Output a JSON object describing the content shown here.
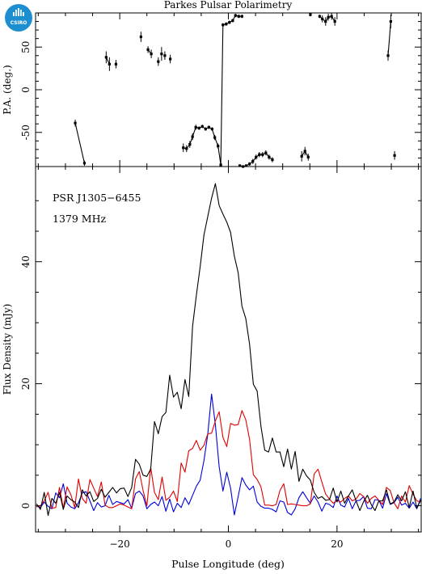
{
  "logo": {
    "text": "CSIRO",
    "color": "#1d8fd1"
  },
  "title": "Parkes Pulsar Polarimetry",
  "chart_data": [
    {
      "type": "scatter",
      "panel": "position-angle",
      "ylabel": "P.A. (deg.)",
      "xlim": [
        -35.5,
        35.5
      ],
      "ylim": [
        -90,
        90
      ],
      "yticks": [
        -50,
        0,
        50
      ],
      "points": [
        [
          -28.2,
          -39,
          4
        ],
        [
          -26.5,
          -86,
          3
        ],
        [
          -22.5,
          38,
          7
        ],
        [
          -21.9,
          30,
          8
        ],
        [
          -20.7,
          30,
          5
        ],
        [
          -16.1,
          62,
          6
        ],
        [
          -14.8,
          47,
          4
        ],
        [
          -14.2,
          42,
          5
        ],
        [
          -12.9,
          33,
          5
        ],
        [
          -12.3,
          42,
          8
        ],
        [
          -11.7,
          40,
          5
        ],
        [
          -10.7,
          36,
          5
        ],
        [
          -8.3,
          -68,
          5
        ],
        [
          -7.7,
          -69,
          4
        ],
        [
          -7.1,
          -64,
          4
        ],
        [
          -6.6,
          -55,
          4
        ],
        [
          -6.0,
          -44,
          3
        ],
        [
          -5.4,
          -45,
          2
        ],
        [
          -4.8,
          -43,
          2
        ],
        [
          -4.2,
          -46,
          2
        ],
        [
          -3.6,
          -44,
          2
        ],
        [
          -3.0,
          -46,
          2
        ],
        [
          -2.5,
          -56,
          3
        ],
        [
          -1.9,
          -66,
          3
        ],
        [
          -1.4,
          -88,
          2
        ],
        [
          -1.0,
          76,
          2
        ],
        [
          -0.4,
          77,
          2
        ],
        [
          0.2,
          79,
          2
        ],
        [
          0.8,
          81,
          2
        ],
        [
          1.3,
          87,
          2
        ],
        [
          1.9,
          86,
          2
        ],
        [
          2.5,
          86,
          2
        ],
        [
          2.1,
          -89,
          1
        ],
        [
          2.7,
          -90,
          1
        ],
        [
          3.3,
          -89,
          1
        ],
        [
          3.9,
          -87,
          2
        ],
        [
          4.5,
          -84,
          3
        ],
        [
          5.1,
          -79,
          3
        ],
        [
          5.7,
          -76,
          3
        ],
        [
          6.3,
          -76,
          3
        ],
        [
          6.9,
          -74,
          3
        ],
        [
          7.5,
          -79,
          3
        ],
        [
          8.1,
          -82,
          3
        ],
        [
          13.5,
          -78,
          6
        ],
        [
          14.1,
          -72,
          5
        ],
        [
          14.7,
          -79,
          4
        ],
        [
          15.1,
          88,
          2
        ],
        [
          16.8,
          86,
          2
        ],
        [
          17.3,
          83,
          4
        ],
        [
          17.9,
          80,
          5
        ],
        [
          18.4,
          85,
          4
        ],
        [
          19.0,
          86,
          4
        ],
        [
          19.6,
          80,
          5
        ],
        [
          29.4,
          40,
          6
        ],
        [
          29.9,
          80,
          8
        ],
        [
          30.6,
          -77,
          5
        ]
      ],
      "segments": [
        [
          0,
          1
        ],
        [
          2,
          3
        ],
        [
          6,
          7
        ],
        [
          12,
          13
        ],
        [
          13,
          14
        ],
        [
          14,
          15
        ],
        [
          15,
          16
        ],
        [
          16,
          17
        ],
        [
          17,
          18
        ],
        [
          18,
          19
        ],
        [
          19,
          20
        ],
        [
          20,
          21
        ],
        [
          21,
          22
        ],
        [
          22,
          23
        ],
        [
          23,
          24
        ],
        [
          24,
          25
        ],
        [
          25,
          26
        ],
        [
          26,
          27
        ],
        [
          27,
          28
        ],
        [
          28,
          29
        ],
        [
          29,
          30
        ],
        [
          30,
          31
        ],
        [
          32,
          33
        ],
        [
          33,
          34
        ],
        [
          34,
          35
        ],
        [
          35,
          36
        ],
        [
          36,
          37
        ],
        [
          37,
          38
        ],
        [
          38,
          39
        ],
        [
          39,
          40
        ],
        [
          40,
          41
        ],
        [
          41,
          42
        ],
        [
          43,
          44
        ],
        [
          44,
          45
        ],
        [
          47,
          48
        ],
        [
          48,
          49
        ],
        [
          49,
          50
        ],
        [
          50,
          51
        ],
        [
          51,
          52
        ],
        [
          53,
          54
        ]
      ]
    },
    {
      "type": "line",
      "panel": "profile",
      "xlabel": "Pulse Longitude (deg)",
      "ylabel": "Flux Density (mJy)",
      "xlim": [
        -35.5,
        35.5
      ],
      "ylim": [
        -4.3,
        55.6
      ],
      "xticks": [
        -20,
        0,
        20
      ],
      "yticks": [
        0,
        20,
        40
      ],
      "annotations": [
        "PSR J1305−6455",
        "1379 MHz"
      ],
      "x_start": -35.3,
      "x_step": 0.7,
      "series": [
        {
          "color": "#000000",
          "values": [
            0.3,
            -0.6,
            2.2,
            -1.6,
            1.2,
            0.4,
            2.2,
            -0.6,
            1.6,
            1.0,
            0.6,
            -0.3,
            2.6,
            1.6,
            2.3,
            0.7,
            1.2,
            2.7,
            1.4,
            2.2,
            3.0,
            2.1,
            2.8,
            2.9,
            1.5,
            3.0,
            7.6,
            6.8,
            5.0,
            4.8,
            6.0,
            13.8,
            11.8,
            14.6,
            15.3,
            21.4,
            17.8,
            18.6,
            15.9,
            20.7,
            17.9,
            29.4,
            34.5,
            39.2,
            44.4,
            47.4,
            50.4,
            52.8,
            49.2,
            47.8,
            46.5,
            44.8,
            40.9,
            38.2,
            32.7,
            30.7,
            26.5,
            19.9,
            18.8,
            13.0,
            9.1,
            8.8,
            11.1,
            8.8,
            8.8,
            6.4,
            9.3,
            6.0,
            8.9,
            4.0,
            6.0,
            4.9,
            4.2,
            2.2,
            1.2,
            1.5,
            0.9,
            1.0,
            2.9,
            0.6,
            2.4,
            0.4,
            1.6,
            2.6,
            0.8,
            -0.8,
            0.7,
            1.7,
            0.2,
            -0.8,
            0.8,
            0.8,
            2.6,
            0.3,
            0.6,
            1.8,
            0.8,
            2.3,
            -0.3,
            2.4,
            -0.4,
            0.9
          ]
        },
        {
          "color": "#e00000",
          "values": [
            -0.2,
            0.0,
            0.8,
            2.2,
            -0.4,
            -0.3,
            3.0,
            -0.4,
            3.1,
            1.8,
            -0.3,
            4.4,
            1.2,
            0.4,
            4.3,
            2.9,
            1.5,
            3.9,
            0.1,
            -0.3,
            -0.3,
            0.0,
            0.3,
            0.1,
            -0.2,
            -0.5,
            4.4,
            5.6,
            2.5,
            0.0,
            6.3,
            2.2,
            1.0,
            4.7,
            0.9,
            1.4,
            2.4,
            0.7,
            7.0,
            5.5,
            9.0,
            9.4,
            10.7,
            9.1,
            9.9,
            11.8,
            11.9,
            13.9,
            15.4,
            11.2,
            9.7,
            13.5,
            13.2,
            13.3,
            15.6,
            14.1,
            10.9,
            5.1,
            4.3,
            3.1,
            0.1,
            0.1,
            0.0,
            0.2,
            2.5,
            3.6,
            0.2,
            0.3,
            0.2,
            0.1,
            0.0,
            0.0,
            0.3,
            5.2,
            6.0,
            3.9,
            1.9,
            1.1,
            0.4,
            0.9,
            0.6,
            1.2,
            1.6,
            0.8,
            1.1,
            2.0,
            1.5,
            0.4,
            1.2,
            1.6,
            0.9,
            0.2,
            3.0,
            2.5,
            0.5,
            -0.5,
            1.6,
            0.6,
            3.3,
            1.9,
            0.8,
            0.6
          ]
        },
        {
          "color": "#0000dd",
          "values": [
            0.0,
            -0.3,
            0.6,
            -0.1,
            -0.5,
            2.1,
            1.3,
            3.6,
            0.4,
            -0.2,
            -0.5,
            0.5,
            2.1,
            2.3,
            0.8,
            -0.8,
            0.5,
            -0.2,
            0.0,
            1.7,
            0.2,
            0.7,
            0.5,
            0.3,
            1.0,
            -0.4,
            2.0,
            2.4,
            1.6,
            -0.5,
            0.2,
            0.6,
            0.0,
            1.5,
            -0.9,
            1.1,
            -1.0,
            0.4,
            -0.3,
            1.3,
            0.2,
            1.7,
            3.2,
            4.2,
            7.4,
            11.7,
            18.3,
            13.3,
            6.4,
            2.4,
            5.5,
            2.9,
            -1.5,
            1.5,
            4.6,
            3.4,
            2.6,
            3.2,
            0.6,
            -0.1,
            -0.4,
            -0.4,
            -0.6,
            -1.0,
            0.8,
            0.6,
            -1.1,
            -1.5,
            -0.5,
            1.3,
            2.3,
            1.3,
            0.4,
            1.6,
            0.6,
            -0.9,
            0.4,
            0.2,
            -0.3,
            1.6,
            0.1,
            -0.2,
            1.2,
            -0.5,
            0.8,
            0.9,
            1.5,
            -0.4,
            -0.5,
            1.0,
            0.9,
            -0.4,
            2.0,
            0.2,
            0.5,
            1.4,
            0.1,
            0.4,
            -0.4,
            0.6,
            -0.5,
            1.2
          ]
        }
      ]
    }
  ]
}
